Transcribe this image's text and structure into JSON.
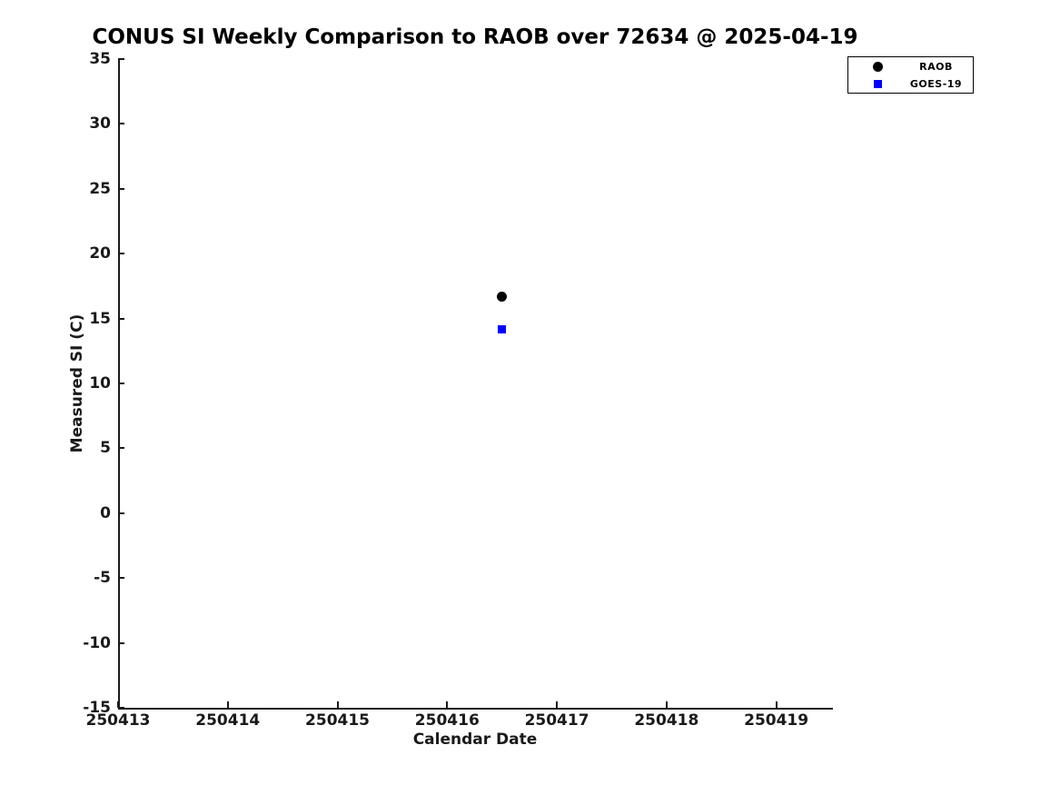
{
  "chart_data": {
    "type": "scatter",
    "title": "CONUS SI Weekly Comparison to RAOB over 72634 @ 2025-04-19",
    "xlabel": "Calendar Date",
    "ylabel": "Measured SI (C)",
    "xlim": [
      250413,
      250419.5
    ],
    "ylim": [
      -15,
      35
    ],
    "xticks": [
      250413,
      250414,
      250415,
      250416,
      250417,
      250418,
      250419
    ],
    "yticks": [
      35,
      30,
      25,
      20,
      15,
      10,
      5,
      0,
      -5,
      -10,
      -15
    ],
    "grid": false,
    "background_color": "#ffffff",
    "axis_color": "#1a1a1a",
    "legend": {
      "position": "upper-right-outside-plot",
      "entries": [
        "RAOB",
        "GOES-19"
      ]
    },
    "series": [
      {
        "name": "RAOB",
        "marker": "circle",
        "color": "#000000",
        "marker_size": 11,
        "points": [
          {
            "x": 250416.5,
            "y": 16.7
          }
        ]
      },
      {
        "name": "GOES-19",
        "marker": "square",
        "color": "#0000ff",
        "marker_size": 9,
        "points": [
          {
            "x": 250416.5,
            "y": 14.2
          }
        ]
      }
    ]
  }
}
